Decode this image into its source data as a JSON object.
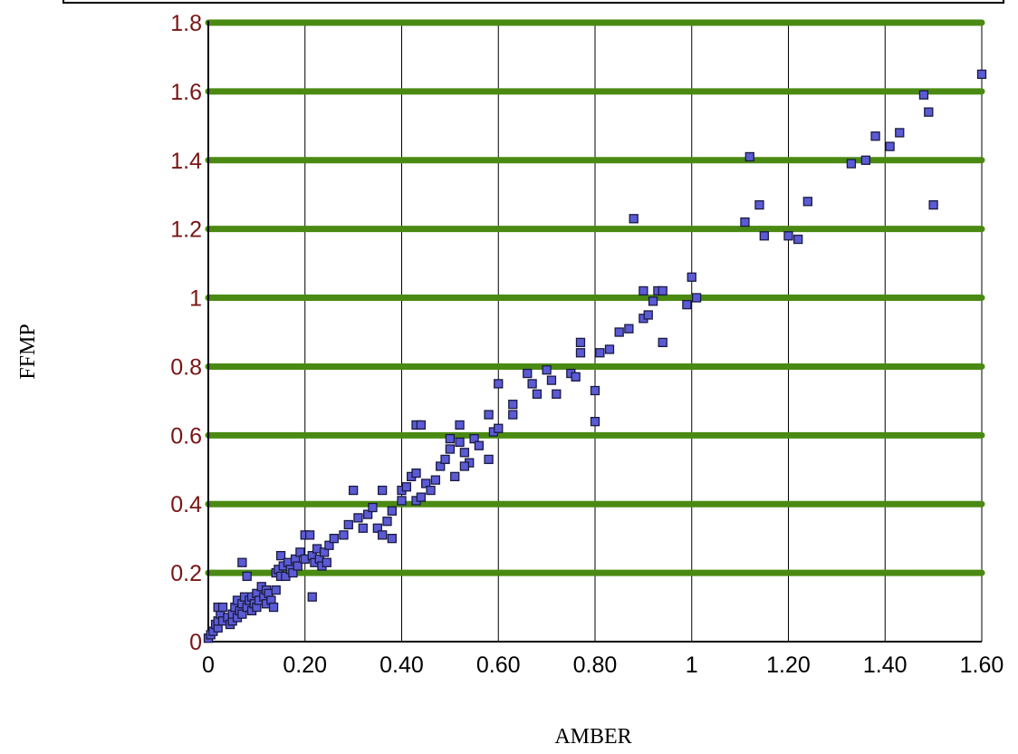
{
  "colors": {
    "background": "#ffffff",
    "grid_major": "#4a8a12",
    "grid_minor": "#000000",
    "y_tick_text": "#7a1414",
    "x_tick_text": "#000000",
    "point_fill": "#5b5bd6",
    "point_stroke": "#1a1a40",
    "axis_title": "#000000"
  },
  "chart_data": {
    "type": "scatter",
    "title": "",
    "xlabel": "AMBER",
    "ylabel": "FFMP",
    "xlim": [
      0,
      1.6
    ],
    "ylim": [
      0,
      1.8
    ],
    "x_ticks": [
      {
        "value": 0,
        "label": "0"
      },
      {
        "value": 0.2,
        "label": "0.20"
      },
      {
        "value": 0.4,
        "label": "0.40"
      },
      {
        "value": 0.6,
        "label": "0.60"
      },
      {
        "value": 0.8,
        "label": "0.80"
      },
      {
        "value": 1.0,
        "label": "1"
      },
      {
        "value": 1.2,
        "label": "1.20"
      },
      {
        "value": 1.4,
        "label": "1.40"
      },
      {
        "value": 1.6,
        "label": "1.60"
      }
    ],
    "y_ticks": [
      {
        "value": 0,
        "label": "0"
      },
      {
        "value": 0.2,
        "label": "0.2"
      },
      {
        "value": 0.4,
        "label": "0.4"
      },
      {
        "value": 0.6,
        "label": "0.6"
      },
      {
        "value": 0.8,
        "label": "0.8"
      },
      {
        "value": 1.0,
        "label": "1"
      },
      {
        "value": 1.2,
        "label": "1.2"
      },
      {
        "value": 1.4,
        "label": "1.4"
      },
      {
        "value": 1.6,
        "label": "1.6"
      },
      {
        "value": 1.8,
        "label": "1.8"
      }
    ],
    "grid": {
      "horizontal": true,
      "vertical": true
    },
    "series": [
      {
        "points": [
          [
            0.0,
            0.01
          ],
          [
            0.005,
            0.02
          ],
          [
            0.01,
            0.03
          ],
          [
            0.015,
            0.05
          ],
          [
            0.02,
            0.04
          ],
          [
            0.02,
            0.06
          ],
          [
            0.025,
            0.08
          ],
          [
            0.02,
            0.1
          ],
          [
            0.03,
            0.1
          ],
          [
            0.03,
            0.06
          ],
          [
            0.04,
            0.07
          ],
          [
            0.045,
            0.05
          ],
          [
            0.05,
            0.06
          ],
          [
            0.05,
            0.08
          ],
          [
            0.055,
            0.1
          ],
          [
            0.06,
            0.07
          ],
          [
            0.06,
            0.12
          ],
          [
            0.065,
            0.09
          ],
          [
            0.07,
            0.08
          ],
          [
            0.07,
            0.11
          ],
          [
            0.075,
            0.13
          ],
          [
            0.08,
            0.1
          ],
          [
            0.085,
            0.12
          ],
          [
            0.09,
            0.09
          ],
          [
            0.09,
            0.13
          ],
          [
            0.095,
            0.11
          ],
          [
            0.1,
            0.1
          ],
          [
            0.1,
            0.14
          ],
          [
            0.105,
            0.12
          ],
          [
            0.11,
            0.16
          ],
          [
            0.115,
            0.13
          ],
          [
            0.12,
            0.11
          ],
          [
            0.12,
            0.15
          ],
          [
            0.125,
            0.14
          ],
          [
            0.13,
            0.12
          ],
          [
            0.135,
            0.1
          ],
          [
            0.14,
            0.15
          ],
          [
            0.14,
            0.2
          ],
          [
            0.145,
            0.21
          ],
          [
            0.15,
            0.19
          ],
          [
            0.15,
            0.25
          ],
          [
            0.155,
            0.22
          ],
          [
            0.16,
            0.19
          ],
          [
            0.165,
            0.23
          ],
          [
            0.17,
            0.21
          ],
          [
            0.175,
            0.2
          ],
          [
            0.18,
            0.24
          ],
          [
            0.185,
            0.22
          ],
          [
            0.19,
            0.26
          ],
          [
            0.2,
            0.24
          ],
          [
            0.2,
            0.31
          ],
          [
            0.21,
            0.31
          ],
          [
            0.215,
            0.25
          ],
          [
            0.22,
            0.23
          ],
          [
            0.225,
            0.27
          ],
          [
            0.23,
            0.24
          ],
          [
            0.235,
            0.22
          ],
          [
            0.24,
            0.26
          ],
          [
            0.245,
            0.23
          ],
          [
            0.25,
            0.28
          ],
          [
            0.26,
            0.3
          ],
          [
            0.215,
            0.13
          ],
          [
            0.07,
            0.23
          ],
          [
            0.08,
            0.19
          ],
          [
            0.28,
            0.31
          ],
          [
            0.29,
            0.34
          ],
          [
            0.3,
            0.44
          ],
          [
            0.31,
            0.36
          ],
          [
            0.32,
            0.33
          ],
          [
            0.33,
            0.37
          ],
          [
            0.34,
            0.39
          ],
          [
            0.35,
            0.33
          ],
          [
            0.36,
            0.31
          ],
          [
            0.37,
            0.35
          ],
          [
            0.38,
            0.3
          ],
          [
            0.38,
            0.38
          ],
          [
            0.36,
            0.44
          ],
          [
            0.4,
            0.41
          ],
          [
            0.4,
            0.44
          ],
          [
            0.41,
            0.45
          ],
          [
            0.42,
            0.48
          ],
          [
            0.43,
            0.41
          ],
          [
            0.43,
            0.49
          ],
          [
            0.44,
            0.42
          ],
          [
            0.45,
            0.46
          ],
          [
            0.46,
            0.44
          ],
          [
            0.47,
            0.47
          ],
          [
            0.48,
            0.51
          ],
          [
            0.49,
            0.53
          ],
          [
            0.5,
            0.56
          ],
          [
            0.51,
            0.48
          ],
          [
            0.52,
            0.58
          ],
          [
            0.53,
            0.55
          ],
          [
            0.54,
            0.52
          ],
          [
            0.55,
            0.59
          ],
          [
            0.56,
            0.57
          ],
          [
            0.43,
            0.63
          ],
          [
            0.44,
            0.63
          ],
          [
            0.52,
            0.63
          ],
          [
            0.5,
            0.59
          ],
          [
            0.53,
            0.51
          ],
          [
            0.58,
            0.53
          ],
          [
            0.58,
            0.66
          ],
          [
            0.59,
            0.61
          ],
          [
            0.6,
            0.62
          ],
          [
            0.6,
            0.75
          ],
          [
            0.63,
            0.66
          ],
          [
            0.63,
            0.69
          ],
          [
            0.66,
            0.78
          ],
          [
            0.67,
            0.75
          ],
          [
            0.68,
            0.72
          ],
          [
            0.7,
            0.79
          ],
          [
            0.71,
            0.76
          ],
          [
            0.72,
            0.72
          ],
          [
            0.75,
            0.78
          ],
          [
            0.76,
            0.77
          ],
          [
            0.77,
            0.84
          ],
          [
            0.77,
            0.87
          ],
          [
            0.8,
            0.64
          ],
          [
            0.8,
            0.73
          ],
          [
            0.81,
            0.84
          ],
          [
            0.83,
            0.85
          ],
          [
            0.85,
            0.9
          ],
          [
            0.87,
            0.91
          ],
          [
            0.88,
            1.23
          ],
          [
            0.9,
            0.94
          ],
          [
            0.9,
            1.02
          ],
          [
            0.91,
            0.95
          ],
          [
            0.92,
            0.99
          ],
          [
            0.93,
            1.02
          ],
          [
            0.94,
            0.87
          ],
          [
            0.94,
            1.02
          ],
          [
            0.99,
            0.98
          ],
          [
            1.0,
            1.06
          ],
          [
            1.01,
            1.0
          ],
          [
            1.11,
            1.22
          ],
          [
            1.12,
            1.41
          ],
          [
            1.14,
            1.27
          ],
          [
            1.15,
            1.18
          ],
          [
            1.2,
            1.18
          ],
          [
            1.22,
            1.17
          ],
          [
            1.24,
            1.28
          ],
          [
            1.33,
            1.39
          ],
          [
            1.36,
            1.4
          ],
          [
            1.38,
            1.47
          ],
          [
            1.41,
            1.44
          ],
          [
            1.43,
            1.48
          ],
          [
            1.48,
            1.59
          ],
          [
            1.49,
            1.54
          ],
          [
            1.5,
            1.27
          ],
          [
            1.6,
            1.65
          ]
        ]
      }
    ]
  }
}
